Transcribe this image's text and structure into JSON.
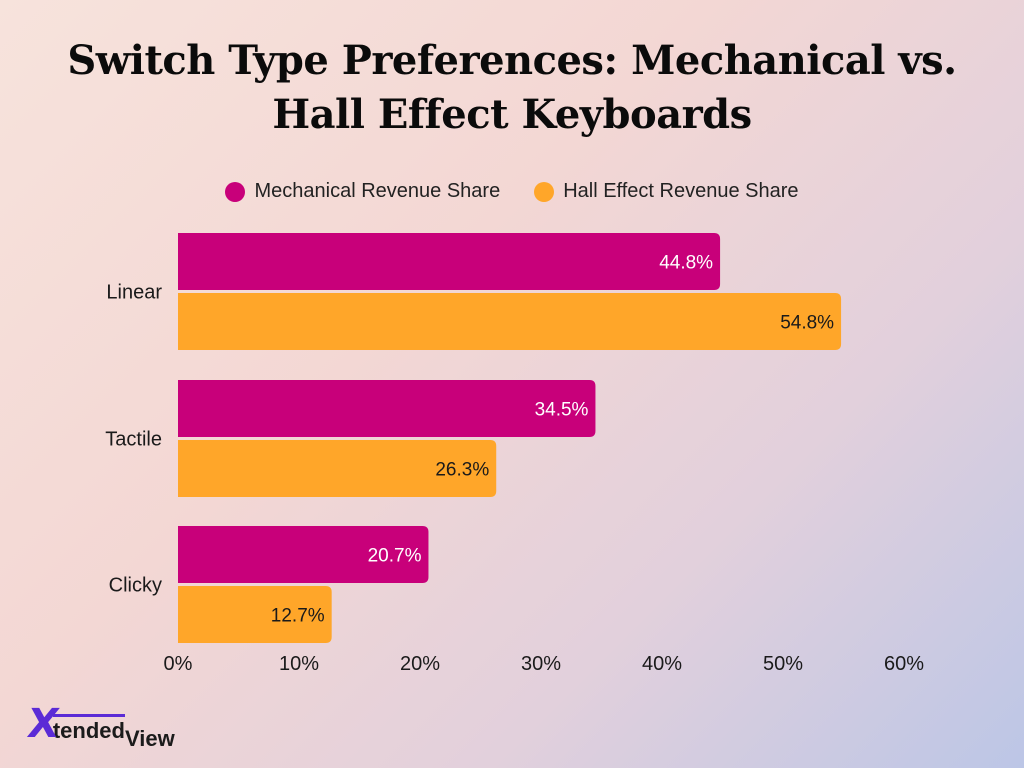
{
  "chart_data": {
    "type": "bar",
    "orientation": "horizontal",
    "title": "Switch Type Preferences: Mechanical vs. Hall Effect Keyboards",
    "categories": [
      "Linear",
      "Tactile",
      "Clicky"
    ],
    "series": [
      {
        "name": "Mechanical Revenue Share",
        "color": "#c8007a",
        "values": [
          44.8,
          34.5,
          20.7
        ],
        "labels": [
          "44.8%",
          "34.5%",
          "20.7%"
        ]
      },
      {
        "name": "Hall Effect Revenue Share",
        "color": "#ffa629",
        "values": [
          54.8,
          26.3,
          12.7
        ],
        "labels": [
          "54.8%",
          "26.3%",
          "12.7%"
        ]
      }
    ],
    "xlim": [
      0,
      60
    ],
    "xticks": [
      "0%",
      "10%",
      "20%",
      "30%",
      "40%",
      "50%",
      "60%"
    ],
    "legend_position": "top-center",
    "grid": false
  },
  "logo": {
    "x": "X",
    "tended": "tended",
    "view": "View"
  }
}
